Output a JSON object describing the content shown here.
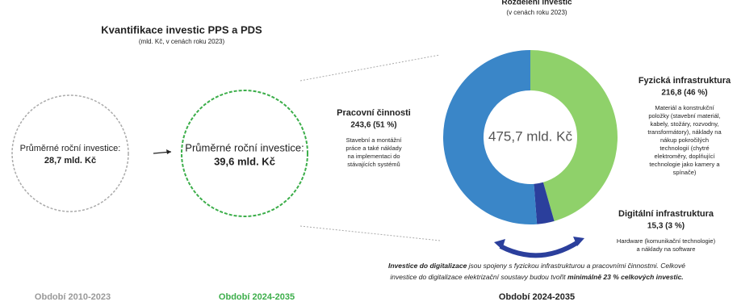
{
  "left_panel": {
    "title": "Kvantifikace investic PPS a PDS",
    "subtitle": "(mld. Kč, v cenách roku 2023)",
    "past": {
      "label": "Průměrné roční investice:",
      "value": "28,7 mld. Kč",
      "period": "Období 2010-2023"
    },
    "future": {
      "label": "Průměrné roční investice:",
      "value": "39,6 mld. Kč",
      "period": "Období 2024-2035"
    }
  },
  "chart_data": {
    "type": "donut",
    "title": "Rozdělení investic",
    "subtitle": "(v cenách roku 2023)",
    "center_label": "475,7 mld. Kč",
    "categories": [
      "Fyzická infrastruktura",
      "Digitální infrastruktura",
      "Pracovní činnosti"
    ],
    "values": [
      216.8,
      15.3,
      243.6
    ],
    "value_labels": [
      "216,8 (46 %)",
      "15,3 (3 %)",
      "243,6 (51 %)"
    ],
    "colors": [
      "#8fd16a",
      "#2b3f9c",
      "#3a86c8"
    ],
    "descriptions": [
      [
        "Materiál a konstrukční",
        "položky (stavební materiál,",
        "kabely, stožáry, rozvodny,",
        "transformátory), náklady na",
        "nákup pokročilých",
        "technologií (chytré",
        "elektroměry, doplňující",
        "technologie jako kamery a",
        "spínače)"
      ],
      [
        "Hardware (komunikační technologie)",
        "a náklady na software"
      ],
      [
        "Stavební a montážní",
        "práce a také náklady",
        "na implementaci do",
        "stávajících systémů"
      ]
    ],
    "period": "Období 2024-2035"
  },
  "note": [
    [
      {
        "text": "Investice do digitalizace",
        "bold": true
      },
      {
        "text": " jsou spojeny s fyzickou infrastrukturou a pracovními činnostmi. Celkové",
        "bold": false
      }
    ],
    [
      {
        "text": "investice do digitalizace elektrizační soustavy budou tvořit ",
        "bold": false
      },
      {
        "text": "minimálně 23 % celkových investic.",
        "bold": true
      }
    ]
  ]
}
